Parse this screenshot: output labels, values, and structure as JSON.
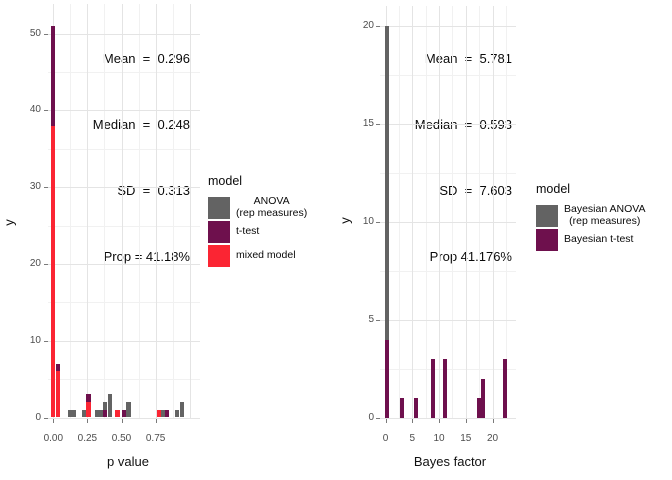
{
  "colors": {
    "red": "#FB2533",
    "purple": "#6E104D",
    "gray": "#636363"
  },
  "chart_data": [
    {
      "type": "bar",
      "stacked": true,
      "title": "",
      "xlabel": "p value",
      "ylabel": "y",
      "xlim": [
        -0.04,
        1.07
      ],
      "ylim": [
        0,
        54
      ],
      "x_tick_labels": [
        "0.00",
        "0.25",
        "0.50",
        "0.75"
      ],
      "x_tick_values": [
        0,
        0.25,
        0.5,
        0.75
      ],
      "x_grid_extra": [
        1.0
      ],
      "x_minor_values": [
        0.125,
        0.375,
        0.625,
        0.875
      ],
      "y_tick_values": [
        0,
        10,
        20,
        30,
        40,
        50
      ],
      "y_minor_values": [
        5,
        15,
        25,
        35,
        45
      ],
      "grid": true,
      "legend_position": "right",
      "annotations": [
        "Mean  =  0.296",
        "Median  =  0.248",
        "SD  =  0.313",
        "Prop = 41.18%"
      ],
      "legend": {
        "title": "model",
        "items": [
          {
            "label": "ANOVA\n(rep measures)",
            "color": "gray"
          },
          {
            "label": "t-test",
            "color": "purple"
          },
          {
            "label": "mixed model",
            "color": "red"
          }
        ]
      },
      "bars": [
        {
          "x": 0.0,
          "segments": [
            [
              "red",
              38
            ],
            [
              "purple",
              13
            ]
          ]
        },
        {
          "x": 0.033,
          "segments": [
            [
              "red",
              6
            ],
            [
              "purple",
              1
            ]
          ]
        },
        {
          "x": 0.122,
          "segments": [
            [
              "gray",
              1
            ]
          ]
        },
        {
          "x": 0.152,
          "segments": [
            [
              "gray",
              1
            ]
          ]
        },
        {
          "x": 0.225,
          "segments": [
            [
              "gray",
              1
            ]
          ]
        },
        {
          "x": 0.258,
          "segments": [
            [
              "red",
              2
            ],
            [
              "purple",
              1
            ]
          ]
        },
        {
          "x": 0.32,
          "segments": [
            [
              "gray",
              1
            ]
          ]
        },
        {
          "x": 0.35,
          "segments": [
            [
              "gray",
              1
            ]
          ]
        },
        {
          "x": 0.38,
          "segments": [
            [
              "purple",
              1
            ],
            [
              "gray",
              1
            ]
          ]
        },
        {
          "x": 0.415,
          "segments": [
            [
              "gray",
              3
            ]
          ]
        },
        {
          "x": 0.472,
          "segments": [
            [
              "red",
              1
            ]
          ]
        },
        {
          "x": 0.518,
          "segments": [
            [
              "purple",
              1
            ]
          ]
        },
        {
          "x": 0.551,
          "segments": [
            [
              "gray",
              2
            ]
          ]
        },
        {
          "x": 0.775,
          "segments": [
            [
              "red",
              1
            ]
          ]
        },
        {
          "x": 0.805,
          "segments": [
            [
              "gray",
              1
            ]
          ]
        },
        {
          "x": 0.835,
          "segments": [
            [
              "purple",
              1
            ]
          ]
        },
        {
          "x": 0.908,
          "segments": [
            [
              "gray",
              1
            ]
          ]
        },
        {
          "x": 0.942,
          "segments": [
            [
              "gray",
              2
            ]
          ]
        }
      ]
    },
    {
      "type": "bar",
      "stacked": true,
      "title": "",
      "xlabel": "Bayes factor",
      "ylabel": "y",
      "xlim": [
        -1,
        24.5
      ],
      "ylim": [
        0,
        21
      ],
      "x_tick_labels": [
        "0",
        "5",
        "10",
        "15",
        "20"
      ],
      "x_tick_values": [
        0,
        5,
        10,
        15,
        20
      ],
      "x_grid_extra": [],
      "x_minor_values": [
        2.5,
        7.5,
        12.5,
        17.5,
        22.5
      ],
      "y_tick_values": [
        0,
        5,
        10,
        15,
        20
      ],
      "y_minor_values": [
        2.5,
        7.5,
        12.5,
        17.5
      ],
      "grid": true,
      "legend_position": "right",
      "annotations": [
        "Mean  =  5.781",
        "Median  =  0.593",
        "SD  =  7.603",
        "Prop 41.176%"
      ],
      "legend": {
        "title": "model",
        "items": [
          {
            "label": "Bayesian ANOVA\n(rep measures)",
            "color": "gray"
          },
          {
            "label": "Bayesian t-test",
            "color": "purple"
          }
        ]
      },
      "bars": [
        {
          "x": 0.37,
          "segments": [
            [
              "purple",
              4
            ],
            [
              "gray",
              16
            ]
          ]
        },
        {
          "x": 3.15,
          "segments": [
            [
              "purple",
              1
            ]
          ]
        },
        {
          "x": 5.7,
          "segments": [
            [
              "purple",
              1
            ]
          ]
        },
        {
          "x": 8.9,
          "segments": [
            [
              "purple",
              3
            ]
          ]
        },
        {
          "x": 11.2,
          "segments": [
            [
              "purple",
              3
            ]
          ]
        },
        {
          "x": 17.4,
          "segments": [
            [
              "purple",
              1
            ]
          ]
        },
        {
          "x": 18.15,
          "segments": [
            [
              "purple",
              2
            ]
          ]
        },
        {
          "x": 22.4,
          "segments": [
            [
              "purple",
              3
            ]
          ]
        }
      ]
    }
  ]
}
